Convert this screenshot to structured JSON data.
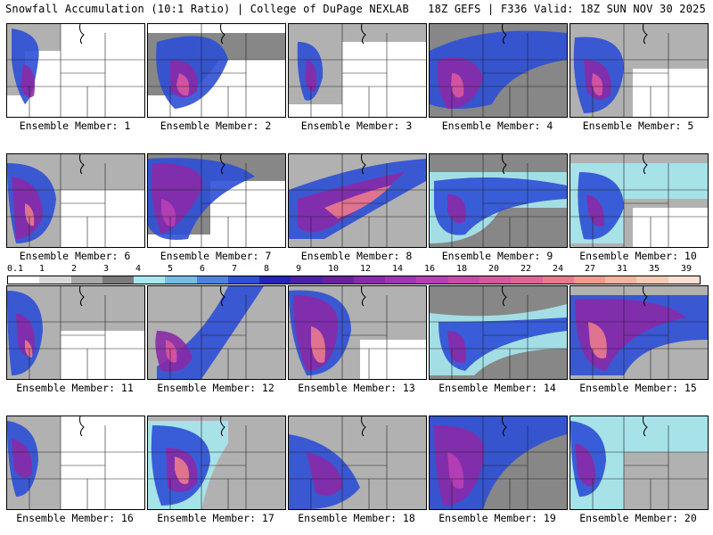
{
  "header": {
    "title_left": "Snowfall Accumulation (10:1 Ratio) | College of DuPage NEXLAB",
    "title_right": "18Z GEFS | F336 Valid: 18Z SUN NOV 30 2025"
  },
  "legend": {
    "labels": [
      "0.1",
      "1",
      "2",
      "3",
      "4",
      "5",
      "6",
      "7",
      "8",
      "9",
      "10",
      "12",
      "14",
      "16",
      "18",
      "20",
      "22",
      "24",
      "27",
      "31",
      "35",
      "39"
    ],
    "colors": [
      "#ffffff",
      "#d9d9d9",
      "#a8a8a8",
      "#7a7a7a",
      "#a6e8ef",
      "#76bde6",
      "#4d83e0",
      "#2e4fd6",
      "#2424b8",
      "#4a22a8",
      "#6a1f9f",
      "#8a2aa8",
      "#a135b0",
      "#b73fb5",
      "#c94aaa",
      "#d8579f",
      "#e26494",
      "#ea7b8c",
      "#f09a8e",
      "#f4b49e",
      "#f6cbb6",
      "#f9e0d4"
    ]
  },
  "panels": [
    {
      "caption": "Ensemble Member: 1"
    },
    {
      "caption": "Ensemble Member: 2"
    },
    {
      "caption": "Ensemble Member: 3"
    },
    {
      "caption": "Ensemble Member: 4"
    },
    {
      "caption": "Ensemble Member: 5"
    },
    {
      "caption": "Ensemble Member: 6"
    },
    {
      "caption": "Ensemble Member: 7"
    },
    {
      "caption": "Ensemble Member: 8"
    },
    {
      "caption": "Ensemble Member: 9"
    },
    {
      "caption": "Ensemble Member: 10"
    },
    {
      "caption": "Ensemble Member: 11"
    },
    {
      "caption": "Ensemble Member: 12"
    },
    {
      "caption": "Ensemble Member: 13"
    },
    {
      "caption": "Ensemble Member: 14"
    },
    {
      "caption": "Ensemble Member: 15"
    },
    {
      "caption": "Ensemble Member: 16"
    },
    {
      "caption": "Ensemble Member: 17"
    },
    {
      "caption": "Ensemble Member: 18"
    },
    {
      "caption": "Ensemble Member: 19"
    },
    {
      "caption": "Ensemble Member: 20"
    }
  ]
}
